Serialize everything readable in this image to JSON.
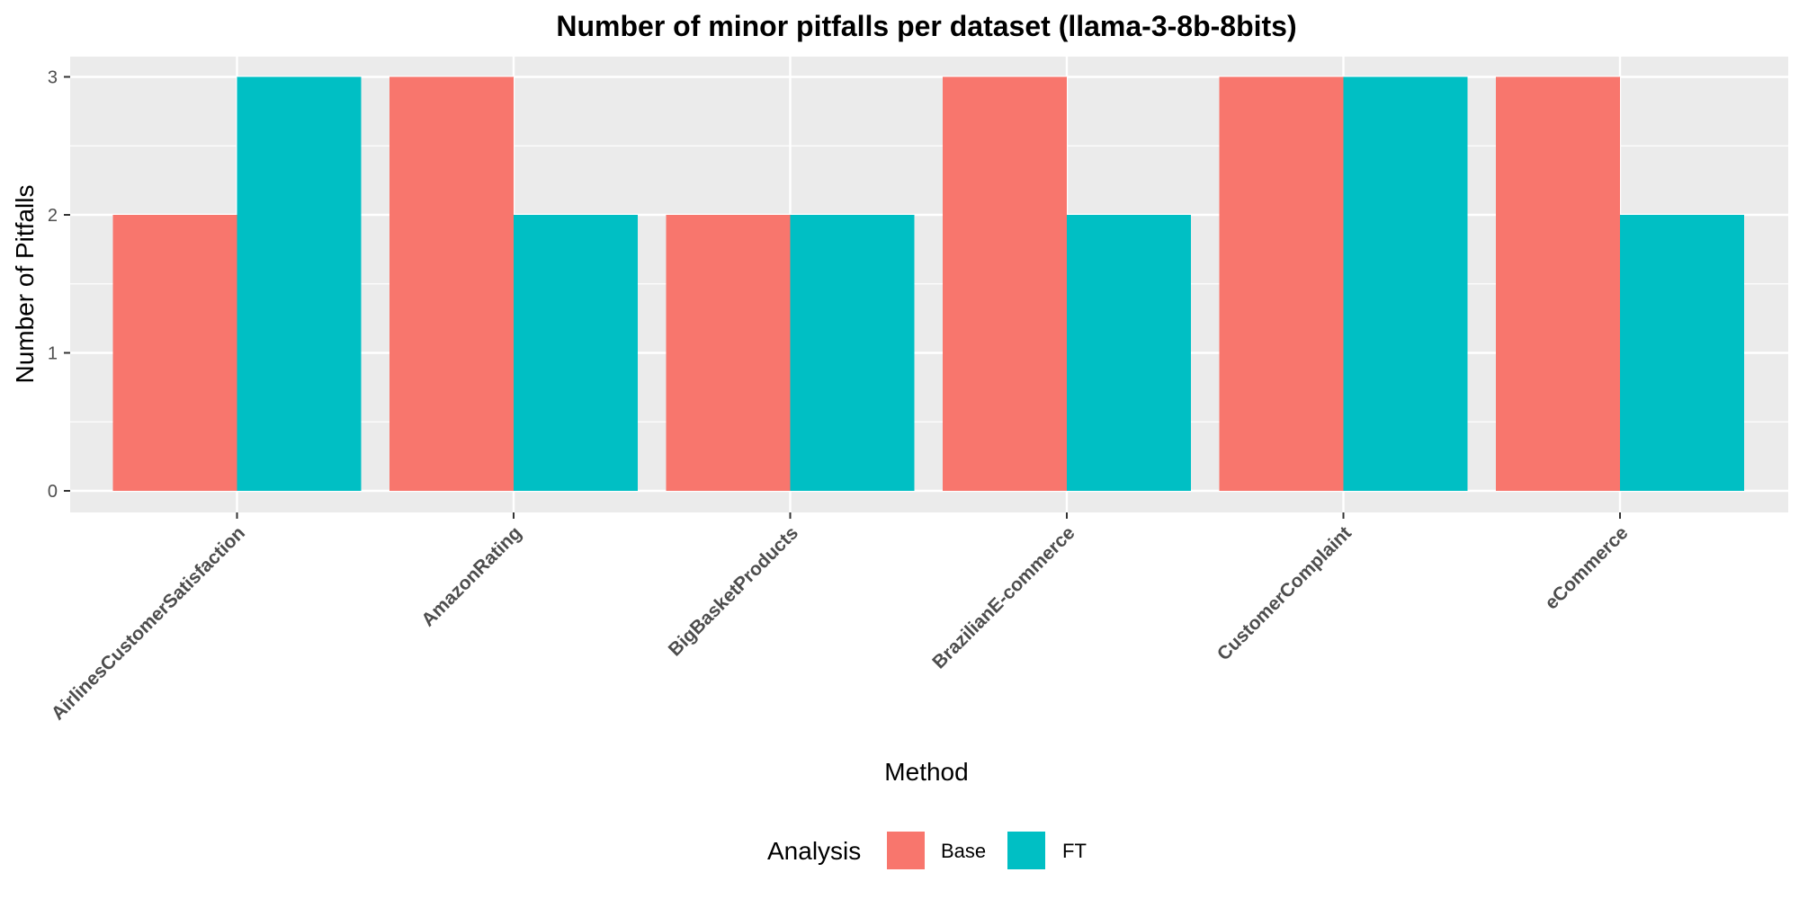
{
  "chart_data": {
    "type": "bar",
    "title": "Number of minor pitfalls per dataset (llama-3-8b-8bits)",
    "xlabel": "Method",
    "ylabel": "Number of Pitfalls",
    "categories": [
      "AirlinesCustomerSatisfaction",
      "AmazonRating",
      "BigBasketProducts",
      "BrazilianE-commerce",
      "CustomerComplaint",
      "eCommerce"
    ],
    "series": [
      {
        "name": "Base",
        "color": "#F8766D",
        "values": [
          2,
          3,
          2,
          3,
          3,
          3
        ]
      },
      {
        "name": "FT",
        "color": "#00BFC4",
        "values": [
          3,
          2,
          2,
          2,
          3,
          2
        ]
      }
    ],
    "yticks": [
      "0",
      "1",
      "2",
      "3"
    ],
    "ylim": [
      0,
      3
    ],
    "grid": true,
    "legend_title": "Analysis",
    "legend_position": "bottom",
    "panel_background": "#EBEBEB"
  }
}
